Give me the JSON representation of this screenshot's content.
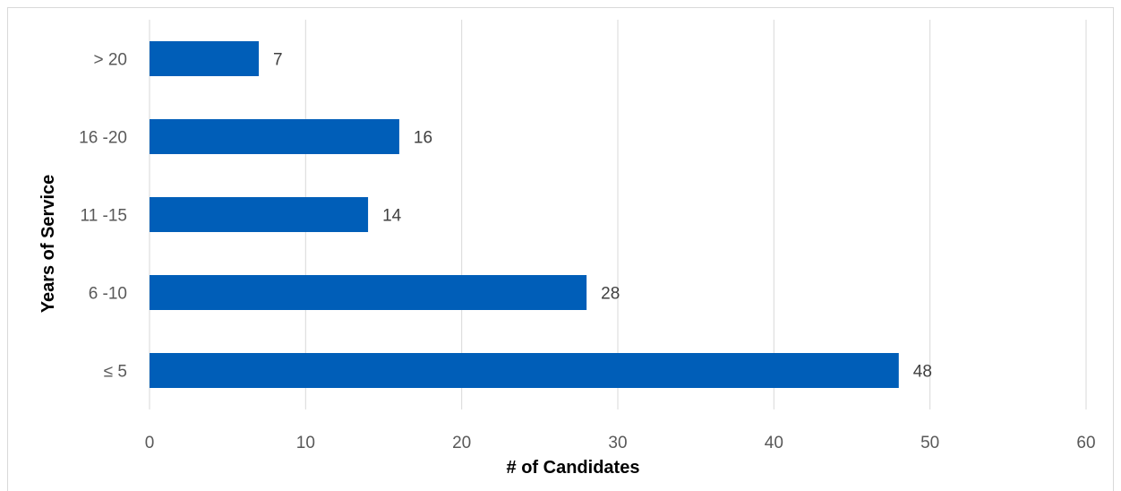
{
  "chart_data": {
    "type": "bar",
    "orientation": "horizontal",
    "categories": [
      "≤ 5",
      "6 -10",
      "11 -15",
      "16 -20",
      "> 20"
    ],
    "values": [
      48,
      28,
      14,
      16,
      7
    ],
    "xlabel": "# of Candidates",
    "ylabel": "Years of Service",
    "xlim": [
      0,
      60
    ],
    "xticks": [
      0,
      10,
      20,
      30,
      40,
      50,
      60
    ],
    "grid": "vertical",
    "legend": "none",
    "bar_color": "#005EB8"
  }
}
